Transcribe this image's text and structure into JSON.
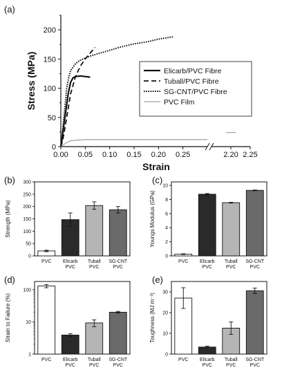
{
  "colors": {
    "axis": "#111111",
    "elicarb": "#111111",
    "tuball": "#111111",
    "sgcnt": "#111111",
    "pvc_film": "#888888",
    "bar_pvc": "#ffffff",
    "bar_elicarb": "#2a2a2a",
    "bar_tuball": "#b5b5b5",
    "bar_sgcnt": "#6a6a6a"
  },
  "chart_data": [
    {
      "panel": "(a)",
      "type": "line",
      "xlabel": "Strain",
      "ylabel": "Stress (MPa)",
      "xlim": [
        0,
        0.3
      ],
      "xlim_broken": [
        2.15,
        2.25
      ],
      "ylim": [
        0,
        225
      ],
      "xticks_main": [
        "0.00",
        "0.05",
        "0.10",
        "0.15",
        "0.20",
        "0.25"
      ],
      "xtick_values_main": [
        0,
        0.05,
        0.1,
        0.15,
        0.2,
        0.25
      ],
      "xticks_broken": [
        "2.20",
        "2.25"
      ],
      "xtick_values_broken": [
        2.2,
        2.25
      ],
      "yticks": [
        "0",
        "50",
        "100",
        "150",
        "200"
      ],
      "ytick_values": [
        0,
        50,
        100,
        150,
        200
      ],
      "legend_position": "center-right",
      "series": [
        {
          "name": "Elicarb/PVC Fibre",
          "style": "solid",
          "x": [
            0,
            0.002,
            0.005,
            0.01,
            0.015,
            0.02,
            0.025,
            0.03,
            0.04,
            0.05,
            0.06
          ],
          "y": [
            0,
            10,
            30,
            60,
            90,
            110,
            118,
            120,
            121,
            120,
            119
          ]
        },
        {
          "name": "Tuball/PVC Fibre",
          "style": "dashed",
          "x": [
            0,
            0.003,
            0.006,
            0.01,
            0.015,
            0.02,
            0.025,
            0.03,
            0.04,
            0.05,
            0.06,
            0.07
          ],
          "y": [
            0,
            8,
            20,
            40,
            65,
            90,
            105,
            120,
            138,
            150,
            160,
            170
          ]
        },
        {
          "name": "SG-CNT/PVC Fibre",
          "style": "dotted",
          "x": [
            0,
            0.004,
            0.008,
            0.012,
            0.016,
            0.02,
            0.03,
            0.04,
            0.06,
            0.08,
            0.1,
            0.12,
            0.15,
            0.18,
            0.2,
            0.23
          ],
          "y": [
            0,
            30,
            65,
            100,
            118,
            130,
            142,
            148,
            155,
            160,
            165,
            170,
            176,
            180,
            184,
            188
          ]
        },
        {
          "name": "PVC Film",
          "style": "thin",
          "x": [
            0,
            0.005,
            0.01,
            0.015,
            0.02,
            0.03,
            0.05,
            0.1,
            0.15,
            0.2,
            0.25,
            0.3
          ],
          "y": [
            0,
            3,
            6,
            8,
            10,
            11,
            12,
            12,
            12,
            12,
            12,
            12
          ],
          "x_broken": [
            2.188,
            2.213
          ],
          "y_broken": [
            24,
            24
          ]
        }
      ]
    },
    {
      "panel": "(b)",
      "type": "bar",
      "ylabel": "Strength (MPa)",
      "ylim": [
        0,
        300
      ],
      "yticks": [
        "0",
        "50",
        "100",
        "150",
        "200",
        "250",
        "300"
      ],
      "ytick_values": [
        0,
        50,
        100,
        150,
        200,
        250,
        300
      ],
      "categories": [
        [
          "PVC"
        ],
        [
          "Elicarb",
          "PVC"
        ],
        [
          "Tuball",
          "PVC"
        ],
        [
          "SG-CNT",
          "PVC"
        ]
      ],
      "values": [
        20,
        147,
        204,
        187
      ],
      "errors": [
        3,
        27,
        15,
        13
      ]
    },
    {
      "panel": "(c)",
      "type": "bar",
      "ylabel": "Youngs Modulus (GPa)",
      "ylim": [
        0,
        10.5
      ],
      "yticks": [
        "0",
        "2",
        "4",
        "6",
        "8",
        "10"
      ],
      "ytick_values": [
        0,
        2,
        4,
        6,
        8,
        10
      ],
      "categories": [
        [
          "PVC"
        ],
        [
          "Elicarb",
          "PVC"
        ],
        [
          "Tuball",
          "PVC"
        ],
        [
          "SG-CNT",
          "PVC"
        ]
      ],
      "values": [
        0.25,
        8.75,
        7.55,
        9.3
      ],
      "errors": [
        0.05,
        0.1,
        0.05,
        0.05
      ]
    },
    {
      "panel": "(d)",
      "type": "bar",
      "scale": "log",
      "ylabel": "Strain to Failure (%)",
      "ylim": [
        1,
        180
      ],
      "yticks": [
        "1",
        "10",
        "100"
      ],
      "ytick_values": [
        1,
        10,
        100
      ],
      "categories": [
        [
          "PVC"
        ],
        [
          "Elicarb",
          "PVC"
        ],
        [
          "Tuball",
          "PVC"
        ],
        [
          "SG-CNT",
          "PVC"
        ]
      ],
      "values": [
        130,
        3.9,
        9.3,
        20
      ],
      "errors": [
        15,
        0.4,
        2.2,
        1.2
      ]
    },
    {
      "panel": "(e)",
      "type": "bar",
      "ylabel": "Toughness (MJ m⁻³)",
      "ylim": [
        0,
        35
      ],
      "yticks": [
        "0",
        "10",
        "20",
        "30"
      ],
      "ytick_values": [
        0,
        10,
        20,
        30
      ],
      "categories": [
        [
          "PVC"
        ],
        [
          "Elicarb",
          "PVC"
        ],
        [
          "Tuball",
          "PVC"
        ],
        [
          "SG-CNT",
          "PVC"
        ]
      ],
      "values": [
        27,
        3.4,
        12.5,
        30.5
      ],
      "errors": [
        5,
        0.4,
        3,
        1.3
      ]
    }
  ]
}
